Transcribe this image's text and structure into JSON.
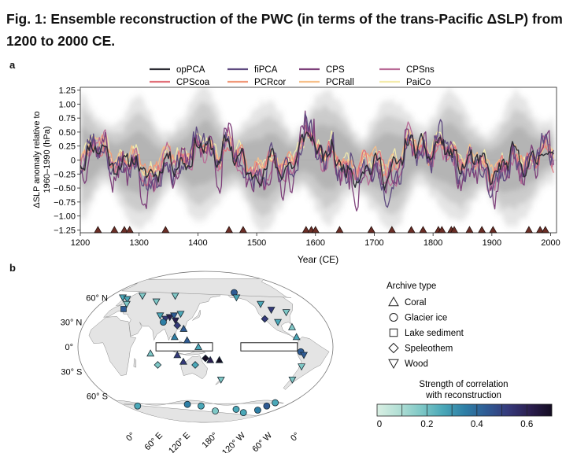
{
  "figure": {
    "title": "Fig. 1: Ensemble reconstruction of the PWC (in terms of the trans-Pacific ΔSLP) from 1200 to 2000  CE.",
    "panel_a_letter": "a",
    "panel_b_letter": "b"
  },
  "chart_data": {
    "type": "line",
    "title": "",
    "xlabel": "Year (CE)",
    "ylabel": "ΔSLP anomaly relative to\n1960–1990 (hPa)",
    "xlim": [
      1200,
      2010
    ],
    "ylim": [
      -1.3,
      1.3
    ],
    "xticks": [
      1200,
      1300,
      1400,
      1500,
      1600,
      1700,
      1800,
      1900,
      2000
    ],
    "yticks": [
      -1.25,
      -1.0,
      -0.75,
      -0.5,
      -0.25,
      0,
      0.25,
      0.5,
      0.75,
      1.0,
      1.25
    ],
    "ytick_labels": [
      "−1.25",
      "−1.00",
      "−0.75",
      "−0.50",
      "−0.25",
      "0",
      "0.25",
      "0.50",
      "0.75",
      "1.00",
      "1.25"
    ],
    "legend_position": "top",
    "uncertainty_band": "grey ensemble spread",
    "series": [
      {
        "name": "opPCA",
        "color": "#2b2b33",
        "width": 1.4,
        "seed": 11,
        "scale": 0.9,
        "offset": 0.0
      },
      {
        "name": "fiPCA",
        "color": "#5e4a80",
        "width": 1.3,
        "seed": 23,
        "scale": 1.25,
        "offset": -0.05
      },
      {
        "name": "CPS",
        "color": "#7d3f7a",
        "width": 1.3,
        "seed": 37,
        "scale": 1.5,
        "offset": -0.1
      },
      {
        "name": "CPSns",
        "color": "#b96a96",
        "width": 1.2,
        "seed": 41,
        "scale": 1.1,
        "offset": -0.05
      },
      {
        "name": "CPScoa",
        "color": "#e2717a",
        "width": 1.2,
        "seed": 53,
        "scale": 0.8,
        "offset": 0.02
      },
      {
        "name": "PCRcor",
        "color": "#f1997a",
        "width": 1.2,
        "seed": 61,
        "scale": 0.75,
        "offset": 0.05
      },
      {
        "name": "PCRall",
        "color": "#f7c08a",
        "width": 1.2,
        "seed": 73,
        "scale": 0.7,
        "offset": 0.08
      },
      {
        "name": "PaiCo",
        "color": "#f4ecac",
        "width": 1.2,
        "seed": 89,
        "scale": 0.85,
        "offset": 0.1
      }
    ],
    "event_marker_years": [
      1230,
      1258,
      1275,
      1284,
      1345,
      1453,
      1477,
      1584,
      1593,
      1600,
      1641,
      1695,
      1730,
      1763,
      1783,
      1809,
      1815,
      1831,
      1836,
      1862,
      1883,
      1902,
      1963,
      1982,
      1991
    ]
  },
  "map": {
    "lat_labels": [
      "60° N",
      "30° N",
      "0°",
      "30° S",
      "60° S"
    ],
    "lon_labels": [
      "0°",
      "60° E",
      "120° E",
      "180°",
      "120° W",
      "60° W",
      "0°"
    ],
    "colorbar_label_line1": "Strength of correlation",
    "colorbar_label_line2": "with reconstruction",
    "colorbar_ticks": [
      "0",
      "0.2",
      "0.4",
      "0.6"
    ],
    "colorbar_colors": [
      "#d9efe3",
      "#b2dfd5",
      "#7fc8c6",
      "#4ba8b8",
      "#2e7fa6",
      "#2f5b94",
      "#35397a",
      "#2b1e4f",
      "#150d22"
    ],
    "archive_legend_title": "Archive type",
    "archive_types": [
      {
        "name": "Coral",
        "shape": "triangle"
      },
      {
        "name": "Glacier ice",
        "shape": "circle"
      },
      {
        "name": "Lake sediment",
        "shape": "square"
      },
      {
        "name": "Speleothem",
        "shape": "diamond"
      },
      {
        "name": "Wood",
        "shape": "triangle-down"
      }
    ],
    "sites": [
      {
        "shape": "triangle-down",
        "lon": -10,
        "lat": 60,
        "r": 0.25
      },
      {
        "shape": "triangle-down",
        "lon": 2,
        "lat": 58,
        "r": 0.3
      },
      {
        "shape": "triangle-down",
        "lon": 10,
        "lat": 52,
        "r": 0.2
      },
      {
        "shape": "triangle-down",
        "lon": 25,
        "lat": 62,
        "r": 0.15
      },
      {
        "shape": "square",
        "lon": 12,
        "lat": 46,
        "r": 0.45
      },
      {
        "shape": "triangle-down",
        "lon": 60,
        "lat": 55,
        "r": 0.2
      },
      {
        "shape": "triangle-down",
        "lon": 90,
        "lat": 62,
        "r": 0.15
      },
      {
        "shape": "triangle-down",
        "lon": 78,
        "lat": 38,
        "r": 0.3
      },
      {
        "shape": "triangle-down",
        "lon": 88,
        "lat": 34,
        "r": 0.55
      },
      {
        "shape": "triangle-down",
        "lon": 94,
        "lat": 36,
        "r": 0.6
      },
      {
        "shape": "triangle-down",
        "lon": 100,
        "lat": 38,
        "r": 0.4
      },
      {
        "shape": "triangle-down",
        "lon": 104,
        "lat": 32,
        "r": 0.65
      },
      {
        "shape": "triangle-down",
        "lon": 110,
        "lat": 40,
        "r": 0.3
      },
      {
        "shape": "circle",
        "lon": 86,
        "lat": 30,
        "r": 0.35
      },
      {
        "shape": "diamond",
        "lon": 108,
        "lat": 26,
        "r": 0.5
      },
      {
        "shape": "triangle",
        "lon": 118,
        "lat": 22,
        "r": 0.45
      },
      {
        "shape": "triangle",
        "lon": 106,
        "lat": 12,
        "r": 0.35
      },
      {
        "shape": "triangle",
        "lon": 124,
        "lat": 8,
        "r": 0.4
      },
      {
        "shape": "triangle",
        "lon": 140,
        "lat": 0,
        "r": 0.3
      },
      {
        "shape": "triangle",
        "lon": 72,
        "lat": -8,
        "r": 0.2
      },
      {
        "shape": "triangle",
        "lon": 110,
        "lat": -10,
        "r": 0.55
      },
      {
        "shape": "triangle",
        "lon": 118,
        "lat": -18,
        "r": 0.5
      },
      {
        "shape": "diamond",
        "lon": 135,
        "lat": -22,
        "r": 0.25
      },
      {
        "shape": "diamond",
        "lon": 80,
        "lat": -22,
        "r": 0.15
      },
      {
        "shape": "diamond",
        "lon": 150,
        "lat": -14,
        "r": 0.7
      },
      {
        "shape": "triangle",
        "lon": 157,
        "lat": -16,
        "r": 0.65
      },
      {
        "shape": "triangle",
        "lon": 170,
        "lat": -16,
        "r": 0.7
      },
      {
        "shape": "triangle-down",
        "lon": 175,
        "lat": -40,
        "r": 0.2
      },
      {
        "shape": "circle",
        "lon": -150,
        "lat": 66,
        "r": 0.4
      },
      {
        "shape": "triangle-down",
        "lon": -150,
        "lat": 60,
        "r": 0.25
      },
      {
        "shape": "triangle-down",
        "lon": -112,
        "lat": 52,
        "r": 0.25
      },
      {
        "shape": "triangle-down",
        "lon": -100,
        "lat": 45,
        "r": 0.55
      },
      {
        "shape": "diamond",
        "lon": -118,
        "lat": 34,
        "r": 0.5
      },
      {
        "shape": "triangle-down",
        "lon": -100,
        "lat": 30,
        "r": 0.3
      },
      {
        "shape": "triangle",
        "lon": -82,
        "lat": 24,
        "r": 0.15
      },
      {
        "shape": "triangle-down",
        "lon": -78,
        "lat": 42,
        "r": 0.2
      },
      {
        "shape": "triangle",
        "lon": -80,
        "lat": 12,
        "r": 0.25
      },
      {
        "shape": "circle",
        "lon": -75,
        "lat": -6,
        "r": 0.45
      },
      {
        "shape": "triangle-down",
        "lon": -70,
        "lat": -10,
        "r": 0.4
      },
      {
        "shape": "triangle-down",
        "lon": -68,
        "lat": -24,
        "r": 0.2
      },
      {
        "shape": "triangle-down",
        "lon": -70,
        "lat": -40,
        "r": 0.15
      },
      {
        "shape": "circle",
        "lon": -5,
        "lat": -72,
        "r": 0.3
      },
      {
        "shape": "circle",
        "lon": 110,
        "lat": -70,
        "r": 0.35
      },
      {
        "shape": "circle",
        "lon": 140,
        "lat": -72,
        "r": 0.25
      },
      {
        "shape": "circle",
        "lon": 175,
        "lat": -78,
        "r": 0.2
      },
      {
        "shape": "circle",
        "lon": -135,
        "lat": -76,
        "r": 0.25
      },
      {
        "shape": "circle",
        "lon": -110,
        "lat": -80,
        "r": 0.3
      },
      {
        "shape": "circle",
        "lon": -80,
        "lat": -77,
        "r": 0.35
      },
      {
        "shape": "circle",
        "lon": -70,
        "lat": -72,
        "r": 0.4
      },
      {
        "shape": "circle",
        "lon": -60,
        "lat": -68,
        "r": 0.3
      }
    ]
  }
}
